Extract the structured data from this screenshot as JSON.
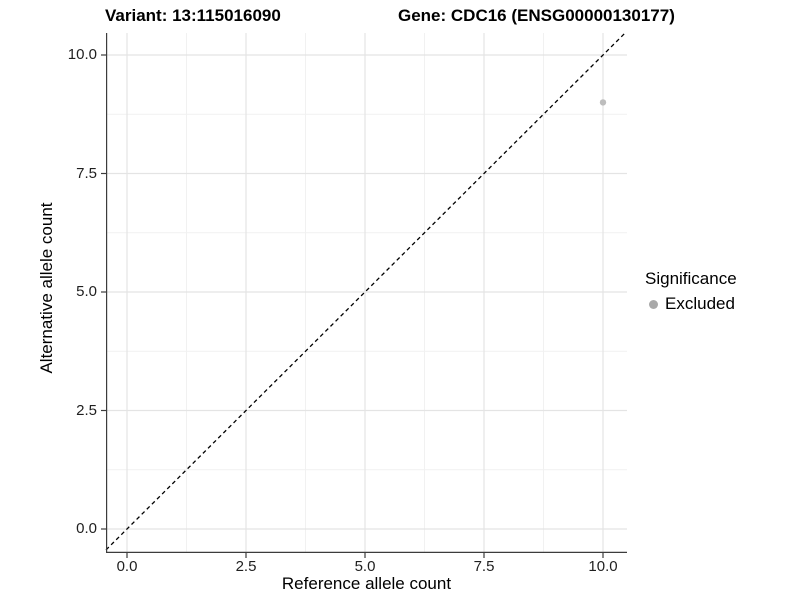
{
  "figure": {
    "title_variant": "Variant: 13:115016090",
    "title_gene": "Gene: CDC16 (ENSG00000130177)"
  },
  "axes": {
    "x": {
      "label": "Reference allele count"
    },
    "y": {
      "label": "Alternative allele count"
    }
  },
  "legend": {
    "title": "Significance",
    "items": [
      {
        "label": "Excluded",
        "color": "#a9a9a9"
      }
    ]
  },
  "chart_data": {
    "type": "scatter",
    "title": "Variant: 13:115016090 / Gene: CDC16 (ENSG00000130177)",
    "xlabel": "Reference allele count",
    "ylabel": "Alternative allele count",
    "xlim": [
      -0.46,
      10.46
    ],
    "ylim": [
      -0.46,
      10.46
    ],
    "x_ticks": {
      "values": [
        0,
        2.5,
        5,
        7.5,
        10
      ],
      "labels": [
        "0.0",
        "2.5",
        "5.0",
        "7.5",
        "10.0"
      ]
    },
    "y_ticks": {
      "values": [
        0,
        2.5,
        5,
        7.5,
        10
      ],
      "labels": [
        "0.0",
        "2.5",
        "5.0",
        "7.5",
        "10.0"
      ]
    },
    "x_minor_ticks": [
      1.25,
      3.75,
      6.25,
      8.75
    ],
    "y_minor_ticks": [
      1.25,
      3.75,
      6.25,
      8.75
    ],
    "grid": "major+minor",
    "legend_position": "right",
    "series": [
      {
        "name": "Excluded",
        "color": "#bdbdbd",
        "marker": "circle",
        "points": [
          {
            "x": 10,
            "y": 9
          }
        ]
      }
    ],
    "reference_line": {
      "kind": "identity y=x",
      "style": "dashed",
      "color": "#000000",
      "x1": -0.46,
      "y1": -0.46,
      "x2": 10.46,
      "y2": 10.46
    }
  },
  "colors": {
    "background": "#ffffff",
    "grid_major": "#e4e4e4",
    "grid_minor": "#f1f1f1",
    "axis_line": "#3c3c3c",
    "tick_label": "#1f1f1f",
    "point": "#bdbdbd",
    "legend_dot": "#a9a9a9",
    "dashed_line": "#000000"
  }
}
